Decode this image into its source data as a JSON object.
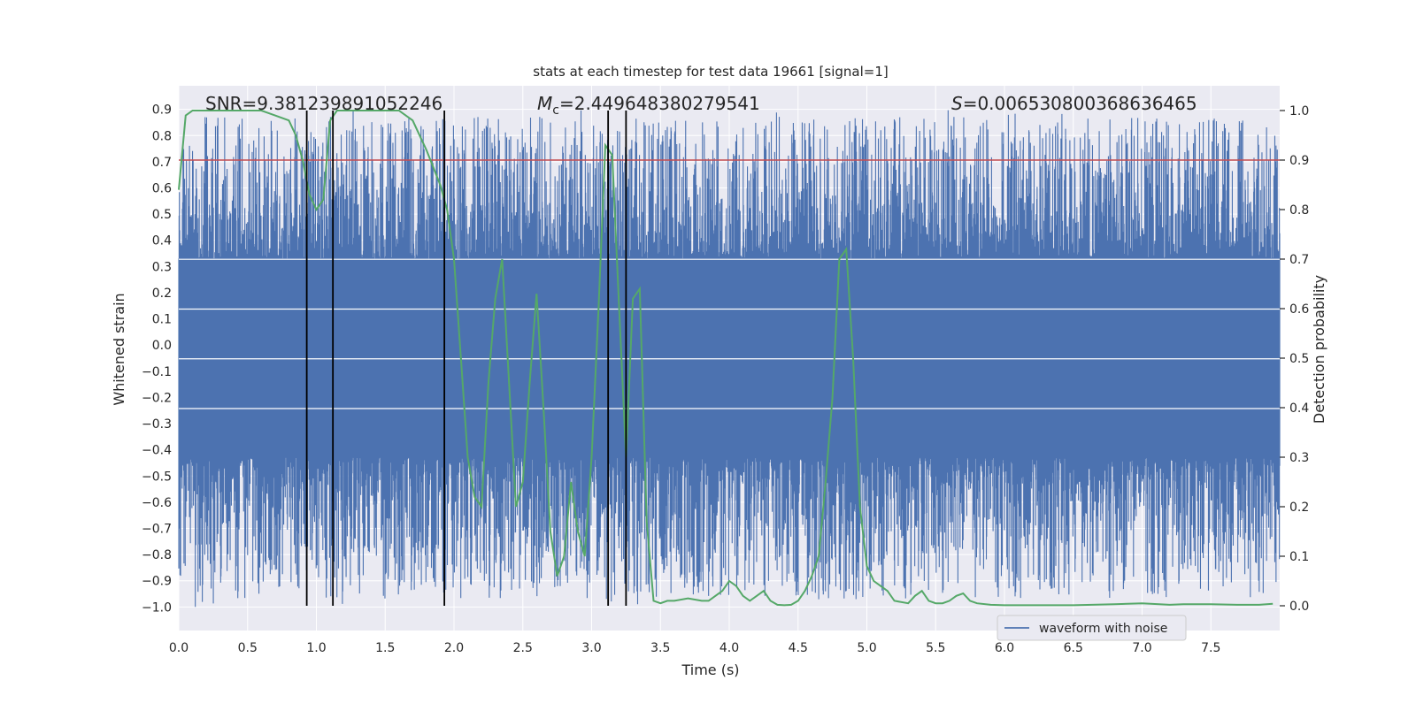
{
  "chart_data": {
    "type": "line",
    "title": "stats at each timestep for test data 19661 [signal=1]",
    "xlabel": "Time (s)",
    "ylabel_left": "Whitened strain",
    "ylabel_right": "Detection probability",
    "xlim": [
      0.0,
      8.0
    ],
    "ylim_left": [
      -1.09,
      0.99
    ],
    "ylim_right": [
      -0.05,
      1.05
    ],
    "x_ticks": [
      0.0,
      0.5,
      1.0,
      1.5,
      2.0,
      2.5,
      3.0,
      3.5,
      4.0,
      4.5,
      5.0,
      5.5,
      6.0,
      6.5,
      7.0,
      7.5
    ],
    "x_tick_labels": [
      "0.0",
      "0.5",
      "1.0",
      "1.5",
      "2.0",
      "2.5",
      "3.0",
      "3.5",
      "4.0",
      "4.5",
      "5.0",
      "5.5",
      "6.0",
      "6.5",
      "7.0",
      "7.5"
    ],
    "y_left_ticks": [
      -1.0,
      -0.9,
      -0.8,
      -0.7,
      -0.6,
      -0.5,
      -0.4,
      -0.3,
      -0.2,
      -0.1,
      0.0,
      0.1,
      0.2,
      0.3,
      0.4,
      0.5,
      0.6,
      0.7,
      0.8,
      0.9
    ],
    "y_left_tick_labels": [
      "−1.0",
      "−0.9",
      "−0.8",
      "−0.7",
      "−0.6",
      "−0.5",
      "−0.4",
      "−0.3",
      "−0.2",
      "−0.1",
      "0.0",
      "0.1",
      "0.2",
      "0.3",
      "0.4",
      "0.5",
      "0.6",
      "0.7",
      "0.8",
      "0.9"
    ],
    "y_right_ticks": [
      0.0,
      0.1,
      0.2,
      0.3,
      0.4,
      0.5,
      0.6,
      0.7,
      0.8,
      0.9,
      1.0
    ],
    "y_right_tick_labels": [
      "0.0",
      "0.1",
      "0.2",
      "0.3",
      "0.4",
      "0.5",
      "0.6",
      "0.7",
      "0.8",
      "0.9",
      "1.0"
    ],
    "annotations": {
      "snr": "SNR=9.381239891052246",
      "mc_symbol": "M",
      "mc_subscript": "c",
      "mc_value": "=2.449648380279541",
      "s_symbol": "S",
      "s_value": "=0.006530800368636465"
    },
    "legend": {
      "label": "waveform with noise",
      "placement": "lower-right"
    },
    "grid": true,
    "colors": {
      "strain": "#4c72b0",
      "probability": "#55a868",
      "threshold": "#c44e52",
      "markers": "#000000",
      "axes_bg": "#eaeaf2",
      "grid": "#ffffff"
    },
    "series": [
      {
        "name": "waveform with noise",
        "kind": "noise_envelope",
        "axis": "left",
        "x_range": [
          0.0,
          8.0
        ],
        "dense_band": [
          -0.43,
          0.33
        ],
        "typical_peak_max": 0.9,
        "typical_peak_min": -1.0
      },
      {
        "kind": "probability",
        "axis": "right",
        "x": [
          0.0,
          0.05,
          0.1,
          0.15,
          0.2,
          0.3,
          0.4,
          0.5,
          0.6,
          0.7,
          0.8,
          0.85,
          0.9,
          0.95,
          1.0,
          1.05,
          1.1,
          1.15,
          1.2,
          1.25,
          1.3,
          1.4,
          1.5,
          1.6,
          1.7,
          1.8,
          1.9,
          1.95,
          2.0,
          2.05,
          2.1,
          2.15,
          2.2,
          2.25,
          2.3,
          2.35,
          2.4,
          2.45,
          2.5,
          2.55,
          2.6,
          2.65,
          2.7,
          2.75,
          2.8,
          2.85,
          2.9,
          2.95,
          3.0,
          3.05,
          3.1,
          3.15,
          3.2,
          3.25,
          3.3,
          3.35,
          3.4,
          3.45,
          3.5,
          3.55,
          3.6,
          3.7,
          3.8,
          3.85,
          3.9,
          3.95,
          4.0,
          4.05,
          4.1,
          4.15,
          4.2,
          4.25,
          4.3,
          4.35,
          4.4,
          4.45,
          4.5,
          4.55,
          4.6,
          4.65,
          4.7,
          4.75,
          4.8,
          4.85,
          4.9,
          4.95,
          5.0,
          5.05,
          5.1,
          5.15,
          5.2,
          5.3,
          5.35,
          5.4,
          5.45,
          5.5,
          5.55,
          5.6,
          5.65,
          5.7,
          5.75,
          5.8,
          5.9,
          6.0,
          6.2,
          6.5,
          6.8,
          7.0,
          7.2,
          7.3,
          7.5,
          7.7,
          7.85,
          7.95
        ],
        "values": [
          0.84,
          0.99,
          1.0,
          1.0,
          1.0,
          1.0,
          1.0,
          1.0,
          1.0,
          0.99,
          0.98,
          0.95,
          0.9,
          0.83,
          0.8,
          0.82,
          0.98,
          1.0,
          1.0,
          1.0,
          1.0,
          1.0,
          1.0,
          1.0,
          0.98,
          0.92,
          0.85,
          0.8,
          0.7,
          0.5,
          0.3,
          0.22,
          0.2,
          0.45,
          0.62,
          0.7,
          0.45,
          0.2,
          0.25,
          0.45,
          0.63,
          0.4,
          0.15,
          0.06,
          0.1,
          0.25,
          0.15,
          0.1,
          0.3,
          0.6,
          0.93,
          0.91,
          0.6,
          0.3,
          0.62,
          0.64,
          0.17,
          0.01,
          0.005,
          0.01,
          0.01,
          0.015,
          0.01,
          0.01,
          0.02,
          0.03,
          0.05,
          0.04,
          0.02,
          0.01,
          0.02,
          0.03,
          0.01,
          0.002,
          0.001,
          0.002,
          0.01,
          0.03,
          0.06,
          0.1,
          0.25,
          0.42,
          0.7,
          0.72,
          0.5,
          0.2,
          0.08,
          0.05,
          0.04,
          0.03,
          0.01,
          0.005,
          0.02,
          0.03,
          0.01,
          0.005,
          0.005,
          0.01,
          0.02,
          0.025,
          0.01,
          0.005,
          0.002,
          0.001,
          0.001,
          0.001,
          0.003,
          0.005,
          0.002,
          0.003,
          0.003,
          0.002,
          0.002,
          0.004
        ]
      },
      {
        "kind": "threshold",
        "axis": "right",
        "value": 0.9
      }
    ],
    "vertical_markers_x": [
      0.93,
      1.12,
      1.93,
      3.12,
      3.25
    ]
  }
}
